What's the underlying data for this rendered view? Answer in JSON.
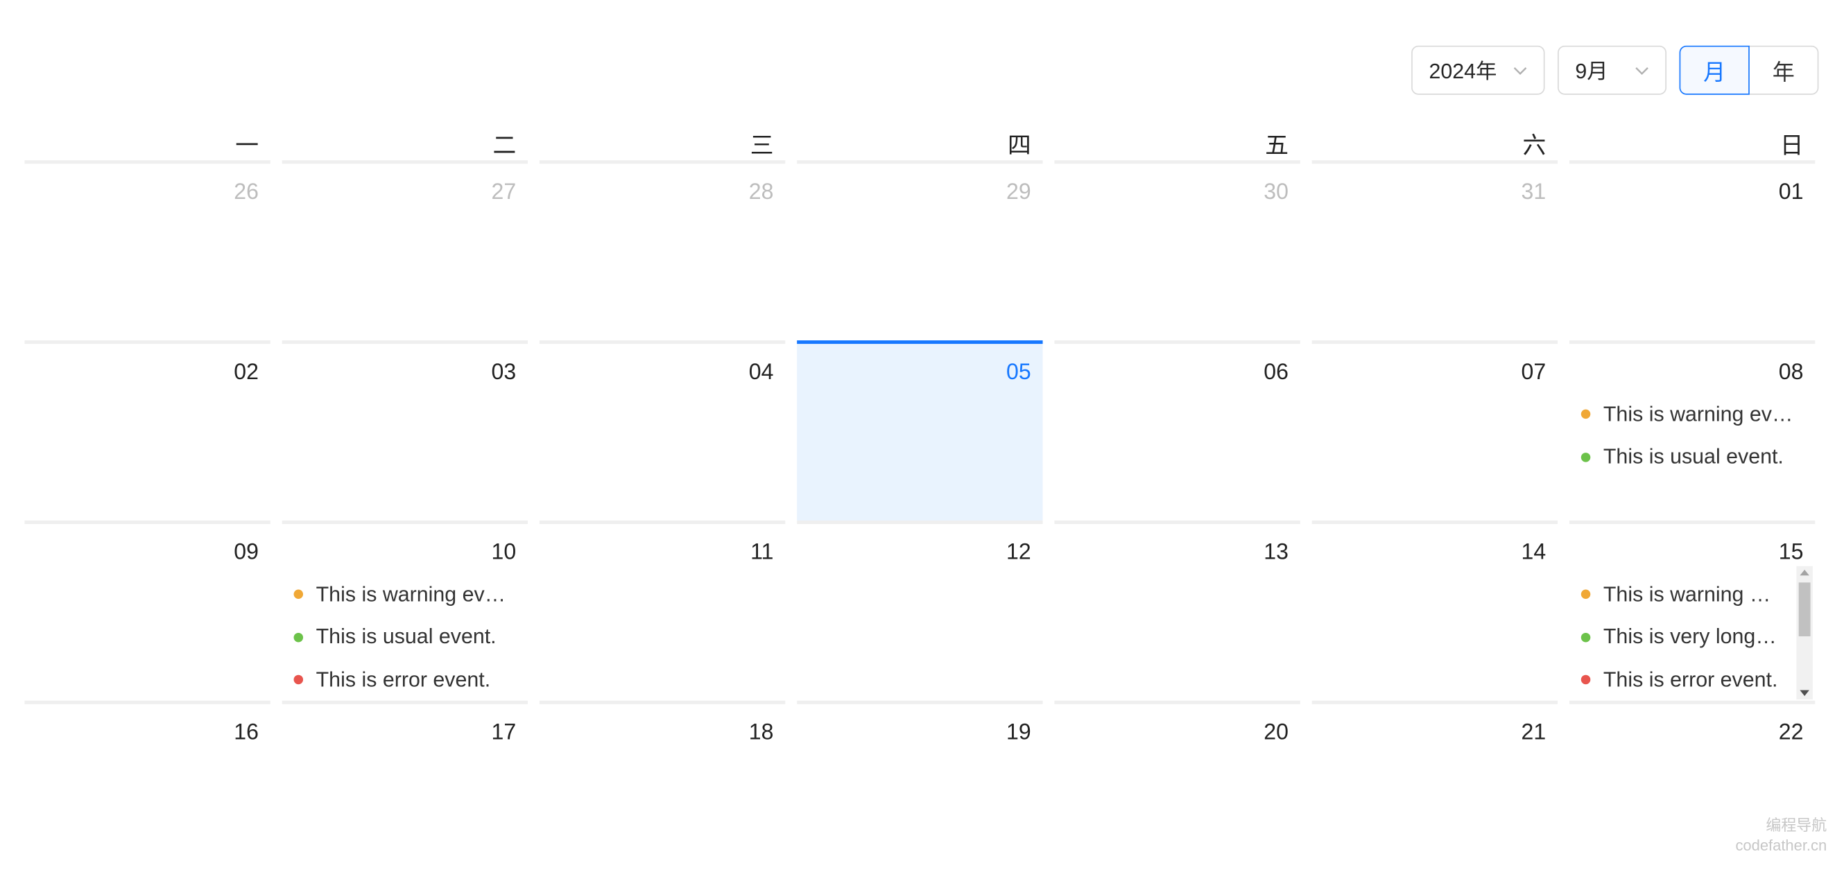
{
  "header": {
    "year_value": "2024年",
    "month_value": "9月",
    "mode_month": "月",
    "mode_year": "年"
  },
  "weekdays": [
    "一",
    "二",
    "三",
    "四",
    "五",
    "六",
    "日"
  ],
  "days": [
    {
      "label": "26",
      "other": true
    },
    {
      "label": "27",
      "other": true
    },
    {
      "label": "28",
      "other": true
    },
    {
      "label": "29",
      "other": true
    },
    {
      "label": "30",
      "other": true
    },
    {
      "label": "31",
      "other": true
    },
    {
      "label": "01"
    },
    {
      "label": "02"
    },
    {
      "label": "03"
    },
    {
      "label": "04"
    },
    {
      "label": "05",
      "today": true
    },
    {
      "label": "06"
    },
    {
      "label": "07"
    },
    {
      "label": "08",
      "events": [
        {
          "type": "warning",
          "text": "This is warning event."
        },
        {
          "type": "usual",
          "text": "This is usual event."
        }
      ]
    },
    {
      "label": "09"
    },
    {
      "label": "10",
      "events": [
        {
          "type": "warning",
          "text": "This is warning event."
        },
        {
          "type": "usual",
          "text": "This is usual event."
        },
        {
          "type": "error",
          "text": "This is error event."
        }
      ]
    },
    {
      "label": "11"
    },
    {
      "label": "12"
    },
    {
      "label": "13"
    },
    {
      "label": "14"
    },
    {
      "label": "15",
      "scroll": true,
      "events": [
        {
          "type": "warning",
          "text": "This is warning event."
        },
        {
          "type": "usual",
          "text": "This is very long usual event."
        },
        {
          "type": "error",
          "text": "This is error event."
        }
      ]
    },
    {
      "label": "16"
    },
    {
      "label": "17"
    },
    {
      "label": "18"
    },
    {
      "label": "19"
    },
    {
      "label": "20"
    },
    {
      "label": "21"
    },
    {
      "label": "22"
    }
  ],
  "colors": {
    "warning": "#f0a836",
    "usual": "#6cc24a",
    "error": "#e8554e",
    "accent": "#1677ff"
  },
  "watermark": {
    "line1": "编程导航",
    "line2": "codefather.cn"
  }
}
